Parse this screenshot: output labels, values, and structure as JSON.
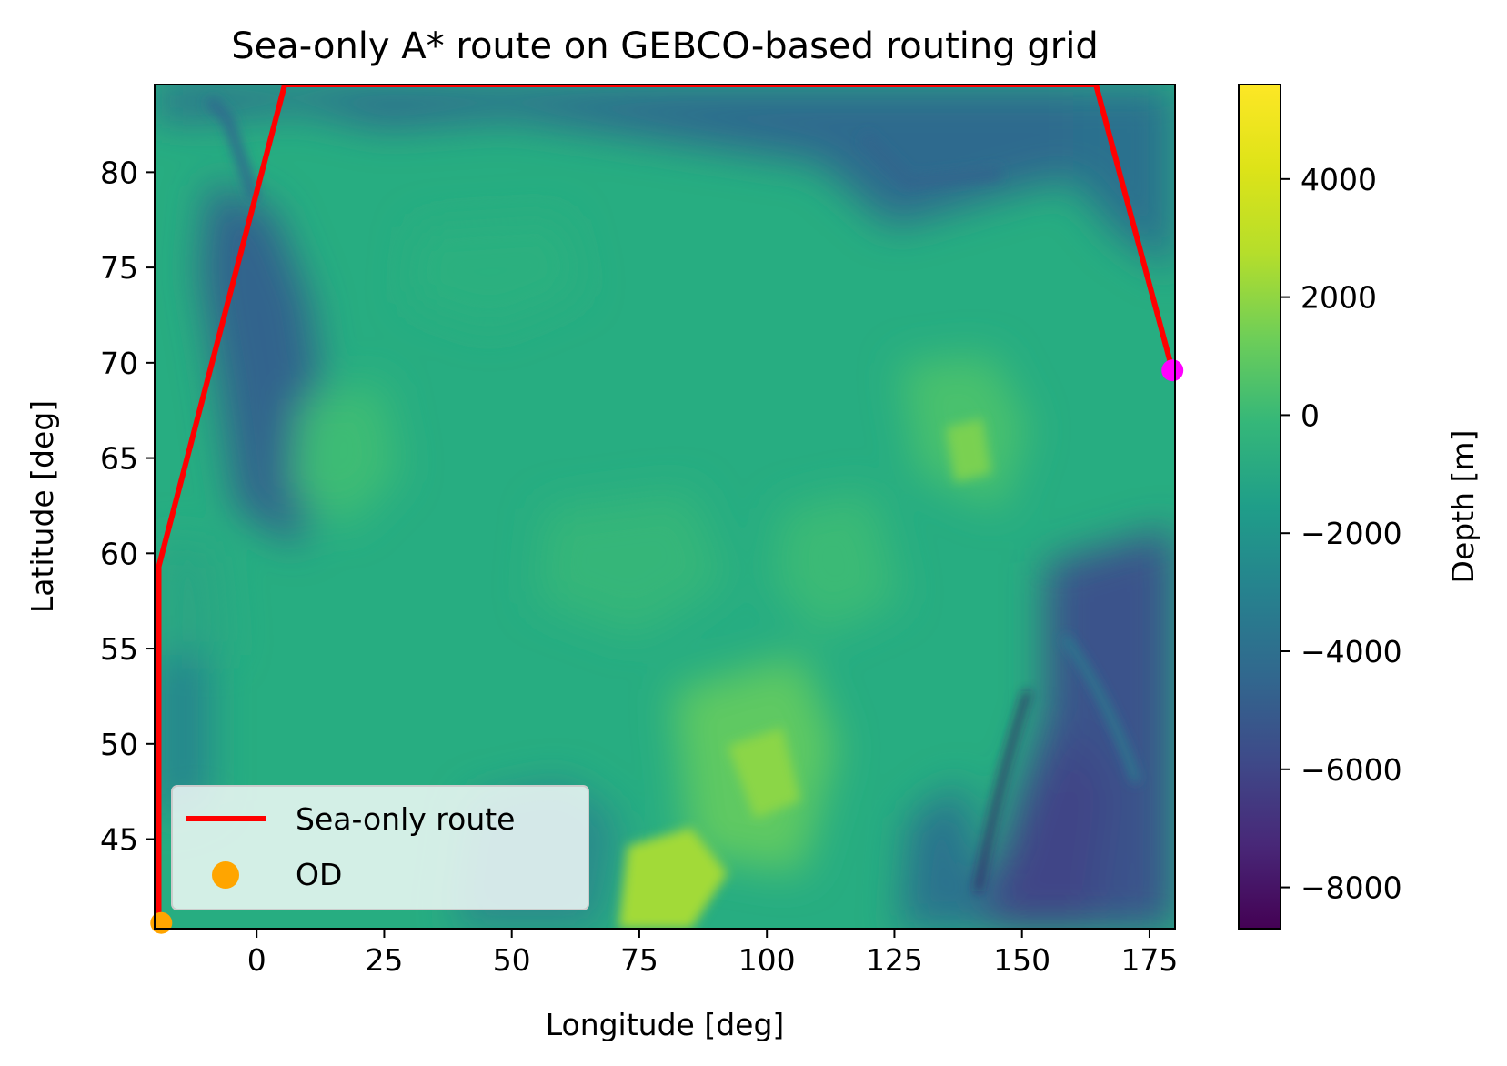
{
  "chart_data": {
    "type": "heatmap",
    "title": "Sea-only A* route on GEBCO-based routing grid",
    "xlabel": "Longitude [deg]",
    "ylabel": "Latitude [deg]",
    "xlim": [
      -20,
      180
    ],
    "ylim": [
      40.3,
      84.6
    ],
    "xticks": [
      0,
      25,
      50,
      75,
      100,
      125,
      150,
      175
    ],
    "yticks": [
      45,
      50,
      55,
      60,
      65,
      70,
      75,
      80
    ],
    "xtick_labels": [
      "0",
      "25",
      "50",
      "75",
      "100",
      "125",
      "150",
      "175"
    ],
    "ytick_labels": [
      "45",
      "50",
      "55",
      "60",
      "65",
      "70",
      "75",
      "80"
    ],
    "grid": false,
    "colorbar": {
      "label": "Depth [m]",
      "colormap": "viridis",
      "range": [
        -8700,
        5600
      ],
      "ticks": [
        4000,
        2000,
        0,
        -2000,
        -4000,
        -6000,
        -8000
      ],
      "tick_labels": [
        "4000",
        "2000",
        "0",
        "−2000",
        "−4000",
        "−6000",
        "−8000"
      ]
    },
    "series": [
      {
        "name": "Sea-only route",
        "type": "line",
        "color": "#ff0000",
        "points": [
          [
            -19.2,
            40.6
          ],
          [
            -19.2,
            59.3
          ],
          [
            5.5,
            84.6
          ],
          [
            164.5,
            84.6
          ],
          [
            179.5,
            69.6
          ]
        ]
      },
      {
        "name": "OD",
        "type": "scatter",
        "color": "#ffa500",
        "points": [
          [
            -18.7,
            40.6
          ]
        ]
      },
      {
        "name": "",
        "type": "scatter",
        "color": "#ff00ff",
        "points": [
          [
            179.5,
            69.6
          ]
        ]
      }
    ],
    "legend": {
      "position": "lower-left",
      "entries": [
        "Sea-only route",
        "OD"
      ]
    }
  }
}
